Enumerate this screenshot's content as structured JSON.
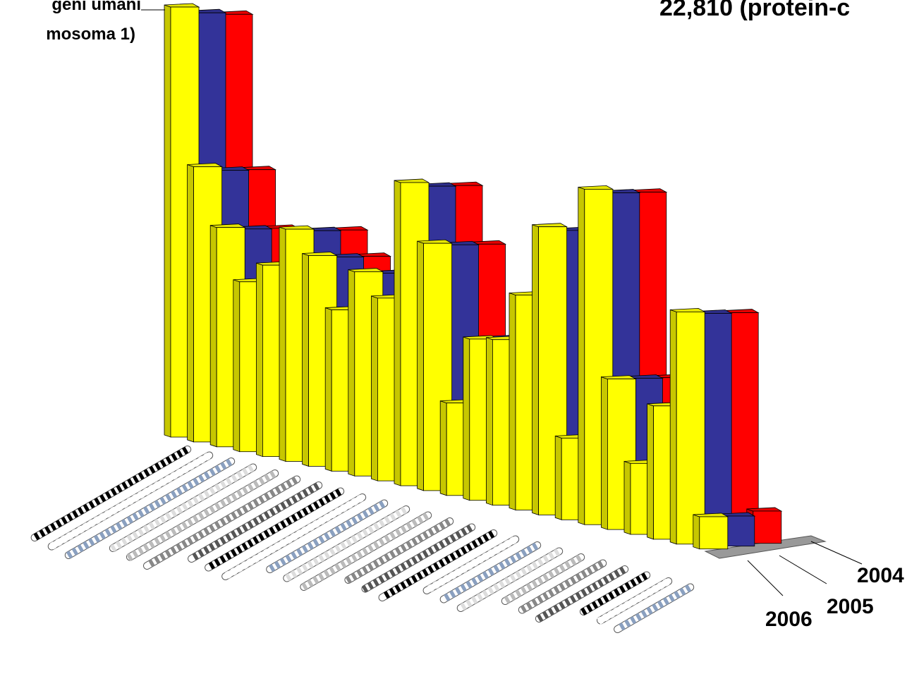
{
  "chart_data": {
    "type": "bar3d",
    "annotations": [
      "geni umani",
      "mosoma 1)",
      "22,810 (protein-c"
    ],
    "categories": [
      null,
      null,
      null,
      null,
      null,
      null,
      null,
      null,
      null,
      null,
      null,
      null,
      null,
      null,
      null,
      null,
      null,
      null,
      null,
      null,
      null,
      null,
      null,
      null
    ],
    "series": [
      {
        "name": "2004",
        "color": "#ff0000",
        "values": [
          1940,
          1240,
          990,
          760,
          860,
          1050,
          950,
          720,
          920,
          820,
          1370,
          1120,
          420,
          730,
          750,
          970,
          1300,
          360,
          1520,
          680,
          320,
          600,
          1050,
          150
        ]
      },
      {
        "name": "2005",
        "color": "#333399",
        "values": [
          1960,
          1250,
          1000,
          770,
          870,
          1060,
          960,
          730,
          930,
          830,
          1380,
          1130,
          420,
          740,
          760,
          980,
          1310,
          370,
          1530,
          690,
          320,
          610,
          1060,
          140
        ]
      },
      {
        "name": "2006",
        "color": "#ffff00",
        "values": [
          2000,
          1280,
          1020,
          790,
          890,
          1080,
          980,
          750,
          950,
          850,
          1410,
          1150,
          430,
          750,
          770,
          1000,
          1340,
          380,
          1560,
          700,
          330,
          620,
          1080,
          150
        ]
      }
    ]
  }
}
